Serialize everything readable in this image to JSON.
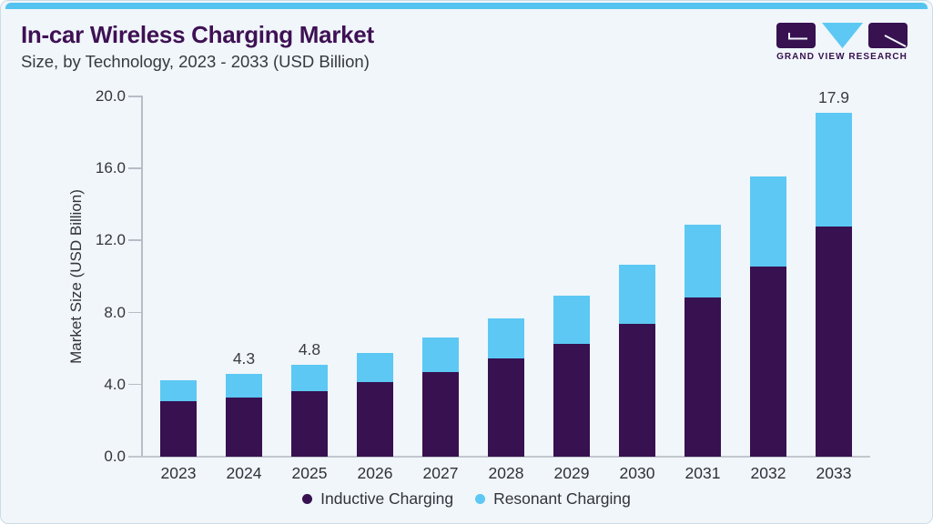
{
  "header": {
    "title": "In-car Wireless Charging Market",
    "subtitle": "Size, by Technology, 2023 - 2033 (USD Billion)",
    "logo_text": "GRAND VIEW RESEARCH"
  },
  "colors": {
    "accent_bar": "#55c3ef",
    "title_purple": "#3f1154",
    "inductive_purple": "#371150",
    "resonant_blue": "#5cc8f3",
    "card_background": "#f0f6fa"
  },
  "chart_data": {
    "type": "bar",
    "stacked": true,
    "title": "In-car Wireless Charging Market",
    "subtitle": "Size, by Technology, 2023 - 2033 (USD Billion)",
    "xlabel": "",
    "ylabel": "Market Size (USD Billion)",
    "ylim": [
      0,
      20
    ],
    "ytick_step": 4,
    "ytick_labels": [
      "20.0",
      "16.0",
      "12.0",
      "8.0",
      "4.0",
      "0.0"
    ],
    "grid": false,
    "legend_position": "bottom",
    "categories": [
      "2023",
      "2024",
      "2025",
      "2026",
      "2027",
      "2028",
      "2029",
      "2030",
      "2031",
      "2032",
      "2033"
    ],
    "series": [
      {
        "name": "Inductive Charging",
        "color": "#371150",
        "values": [
          2.9,
          3.1,
          3.4,
          3.9,
          4.4,
          5.1,
          5.9,
          6.9,
          8.3,
          9.9,
          12.0
        ]
      },
      {
        "name": "Resonant Charging",
        "color": "#5cc8f3",
        "values": [
          1.1,
          1.2,
          1.4,
          1.5,
          1.8,
          2.1,
          2.5,
          3.1,
          3.8,
          4.7,
          5.9
        ]
      }
    ],
    "totals": [
      4.0,
      4.3,
      4.8,
      5.4,
      6.2,
      7.2,
      8.4,
      10.0,
      12.1,
      14.6,
      17.9
    ],
    "data_labels_shown": {
      "2024": "4.3",
      "2025": "4.8",
      "2033": "17.9"
    }
  }
}
